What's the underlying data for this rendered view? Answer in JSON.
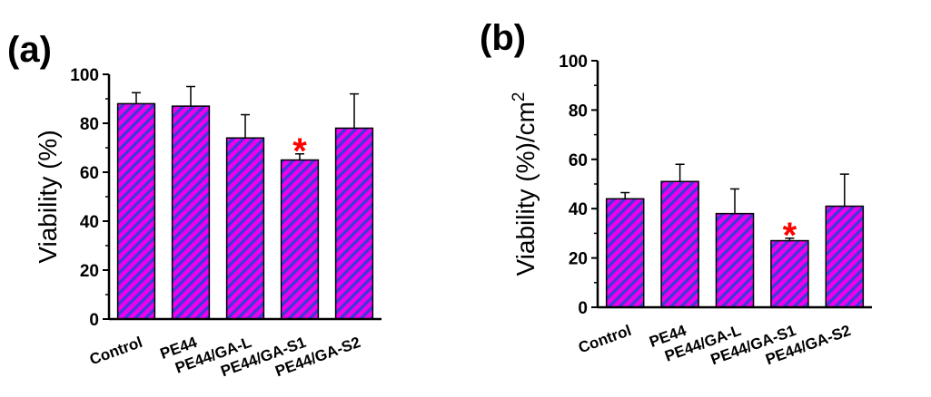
{
  "chart_data": [
    {
      "type": "bar",
      "panel_label": "(a)",
      "categories": [
        "Control",
        "PE44",
        "PE44/GA-L",
        "PE44/GA-S1",
        "PE44/GA-S2"
      ],
      "values": [
        88,
        87,
        74,
        65,
        78
      ],
      "error_bars": [
        4.5,
        8,
        9.5,
        2.5,
        14
      ],
      "significance": [
        "",
        "",
        "",
        "*",
        ""
      ],
      "xlabel": "",
      "ylabel": "Viability (%)",
      "ylabel_superscript": "",
      "ylim": [
        0,
        100
      ],
      "yticks": [
        0,
        20,
        40,
        60,
        80,
        100
      ],
      "grid": false,
      "legend": "none",
      "bar_fill": "hatched diagonal stripes, magenta and blue"
    },
    {
      "type": "bar",
      "panel_label": "(b)",
      "categories": [
        "Control",
        "PE44",
        "PE44/GA-L",
        "PE44/GA-S1",
        "PE44/GA-S2"
      ],
      "values": [
        44,
        51,
        38,
        27,
        41
      ],
      "error_bars": [
        2.5,
        7,
        10,
        1,
        13
      ],
      "significance": [
        "",
        "",
        "",
        "*",
        ""
      ],
      "xlabel": "",
      "ylabel": "Viability (%)/cm",
      "ylabel_superscript": "2",
      "ylim": [
        0,
        100
      ],
      "yticks": [
        0,
        20,
        40,
        60,
        80,
        100
      ],
      "grid": false,
      "legend": "none",
      "bar_fill": "hatched diagonal stripes, magenta and blue"
    }
  ],
  "colors": {
    "bar_primary": "#ee00ee",
    "bar_stripe": "#3b3bd6",
    "axis": "#000000",
    "significance": "#ff0000"
  }
}
